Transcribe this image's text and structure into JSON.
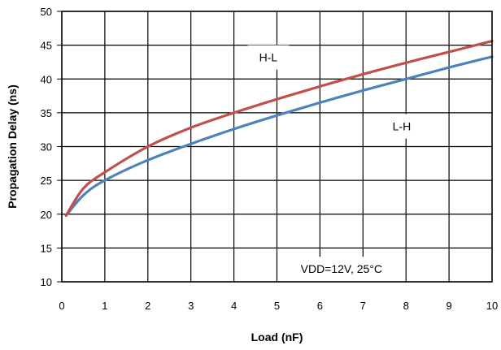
{
  "chart_data": {
    "type": "line",
    "xlabel": "Load (nF)",
    "ylabel": "Propagation Delay (ns)",
    "xlim": [
      0,
      10
    ],
    "ylim": [
      10,
      50
    ],
    "x_ticks": [
      0,
      1,
      2,
      3,
      4,
      5,
      6,
      7,
      8,
      9,
      10
    ],
    "y_ticks": [
      10,
      15,
      20,
      25,
      30,
      35,
      40,
      45,
      50
    ],
    "grid": true,
    "series": [
      {
        "name": "H-L",
        "color": "#c0504d",
        "x": [
          0.1,
          0.5,
          1,
          2,
          3,
          4,
          5,
          6,
          7,
          8,
          9,
          10
        ],
        "y": [
          19.8,
          23.8,
          26.2,
          30.0,
          32.8,
          35.0,
          37.0,
          38.9,
          40.7,
          42.4,
          44.0,
          45.6
        ]
      },
      {
        "name": "L-H",
        "color": "#4f81bd",
        "x": [
          0.1,
          0.5,
          1,
          2,
          3,
          4,
          5,
          6,
          7,
          8,
          9,
          10
        ],
        "y": [
          19.8,
          22.8,
          25.0,
          28.0,
          30.4,
          32.6,
          34.6,
          36.5,
          38.3,
          40.0,
          41.7,
          43.3
        ]
      }
    ],
    "annotations": [
      {
        "text": "H-L",
        "x": 4.8,
        "y": 43.2
      },
      {
        "text": "L-H",
        "x": 7.9,
        "y": 33.0
      },
      {
        "text": "VDD=12V, 25°C",
        "x": 6.5,
        "y": 11.9
      }
    ]
  }
}
